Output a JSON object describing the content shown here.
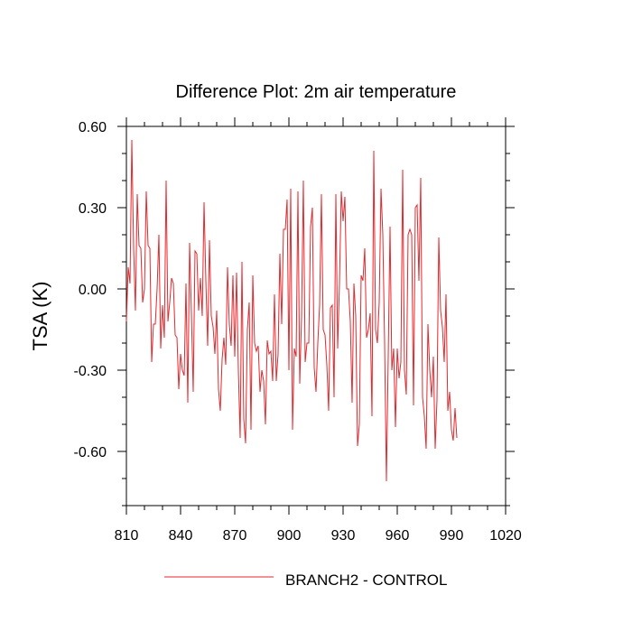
{
  "chart_data": {
    "type": "line",
    "title": "Difference Plot: 2m air temperature",
    "xlabel": "",
    "ylabel": "TSA  (K)",
    "xlim": [
      810,
      1020
    ],
    "ylim": [
      -0.8,
      0.6
    ],
    "x_ticks": [
      810,
      840,
      870,
      900,
      930,
      960,
      990,
      1020
    ],
    "x_tick_labels": [
      "810",
      "840",
      "870",
      "900",
      "930",
      "960",
      "990",
      "1020"
    ],
    "y_ticks": [
      0.6,
      0.3,
      0.0,
      -0.3,
      -0.6
    ],
    "y_tick_labels": [
      "0.60",
      "0.30",
      "0.00",
      "-0.30",
      "-0.60"
    ],
    "legend_position": "bottom-center",
    "series": [
      {
        "name": "BRANCH2 - CONTROL",
        "color": "#e8262b",
        "x_start": 810,
        "x_step": 1,
        "values": [
          -0.12,
          0.08,
          0.02,
          0.55,
          0.15,
          -0.08,
          0.35,
          0.16,
          0.15,
          -0.05,
          0.0,
          0.36,
          0.16,
          0.15,
          -0.27,
          -0.13,
          -0.13,
          0.0,
          0.2,
          -0.22,
          -0.06,
          -0.18,
          0.4,
          -0.12,
          -0.05,
          0.04,
          0.02,
          -0.17,
          -0.18,
          -0.37,
          -0.24,
          -0.3,
          -0.32,
          0.02,
          -0.42,
          0.17,
          -0.09,
          -0.38,
          0.14,
          0.13,
          -0.08,
          0.04,
          -0.1,
          0.32,
          0.03,
          -0.21,
          0.18,
          -0.1,
          -0.14,
          -0.24,
          -0.08,
          -0.37,
          -0.45,
          -0.26,
          -0.18,
          -0.28,
          0.08,
          -0.13,
          -0.21,
          0.05,
          -0.25,
          0.06,
          -0.3,
          -0.55,
          0.1,
          -0.48,
          -0.57,
          -0.15,
          -0.05,
          -0.52,
          0.05,
          -0.2,
          -0.23,
          -0.21,
          -0.38,
          -0.3,
          -0.34,
          -0.5,
          -0.19,
          -0.24,
          -0.23,
          -0.34,
          -0.02,
          -0.34,
          -0.24,
          0.13,
          -0.13,
          0.22,
          0.22,
          0.33,
          -0.3,
          0.37,
          -0.52,
          -0.22,
          -0.25,
          0.36,
          -0.35,
          -0.1,
          0.4,
          -0.27,
          -0.2,
          -0.2,
          0.23,
          0.3,
          -0.29,
          -0.38,
          -0.2,
          -0.06,
          0.35,
          -0.15,
          -0.17,
          -0.28,
          -0.45,
          -0.07,
          -0.06,
          -0.4,
          0.35,
          -0.22,
          0.02,
          0.36,
          0.25,
          0.34,
          0.0,
          0.0,
          -0.12,
          -0.42,
          0.02,
          -0.1,
          -0.58,
          -0.5,
          0.05,
          0.03,
          0.15,
          -0.18,
          -0.15,
          -0.09,
          -0.47,
          0.51,
          -0.15,
          -0.2,
          -0.05,
          0.37,
          0.2,
          -0.2,
          -0.71,
          -0.25,
          0.23,
          -0.3,
          -0.22,
          -0.51,
          -0.22,
          -0.33,
          -0.27,
          0.44,
          -0.3,
          -0.39,
          0.2,
          0.22,
          0.2,
          -0.43,
          0.3,
          0.31,
          0.03,
          0.41,
          -0.4,
          -0.47,
          -0.59,
          -0.13,
          -0.3,
          -0.4,
          -0.25,
          -0.59,
          -0.41,
          0.19,
          -0.08,
          -0.14,
          -0.27,
          -0.02,
          -0.45,
          -0.38,
          -0.52,
          -0.56,
          -0.44,
          -0.55
        ]
      }
    ]
  }
}
